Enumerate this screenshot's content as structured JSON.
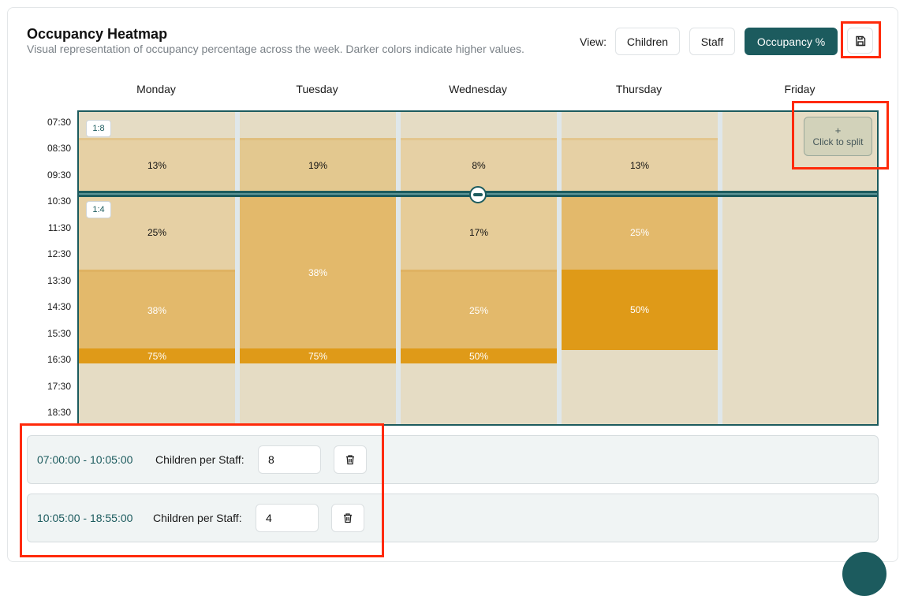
{
  "header": {
    "title": "Occupancy Heatmap",
    "subtitle": "Visual representation of occupancy percentage across the week. Darker colors indicate higher values."
  },
  "view": {
    "label": "View:",
    "options": [
      "Children",
      "Staff",
      "Occupancy %"
    ],
    "active": "Occupancy %"
  },
  "toolbar": {
    "save_icon": "save-icon"
  },
  "heatmap": {
    "days": [
      "Monday",
      "Tuesday",
      "Wednesday",
      "Thursday",
      "Friday"
    ],
    "times": [
      "07:30",
      "08:30",
      "09:30",
      "10:30",
      "11:30",
      "12:30",
      "13:30",
      "14:30",
      "15:30",
      "16:30",
      "17:30",
      "18:30"
    ],
    "ratio_badges": [
      "1:8",
      "1:4"
    ],
    "split_button": {
      "icon": "+",
      "label": "Click to split"
    },
    "cells": {
      "mon": [
        "13%",
        "25%",
        "38%",
        "75%"
      ],
      "tue": [
        "19%",
        "38%",
        "75%"
      ],
      "wed": [
        "8%",
        "17%",
        "25%",
        "50%"
      ],
      "thu": [
        "13%",
        "25%",
        "50%"
      ]
    },
    "colors": {
      "empty": "#e5dcc4",
      "low": "#e6d0a4",
      "mid": "#e3b96b",
      "high": "#df9a18"
    }
  },
  "ranges": [
    {
      "time": "07:00:00 - 10:05:00",
      "label": "Children per Staff:",
      "value": "8"
    },
    {
      "time": "10:05:00 - 18:55:00",
      "label": "Children per Staff:",
      "value": "4"
    }
  ]
}
